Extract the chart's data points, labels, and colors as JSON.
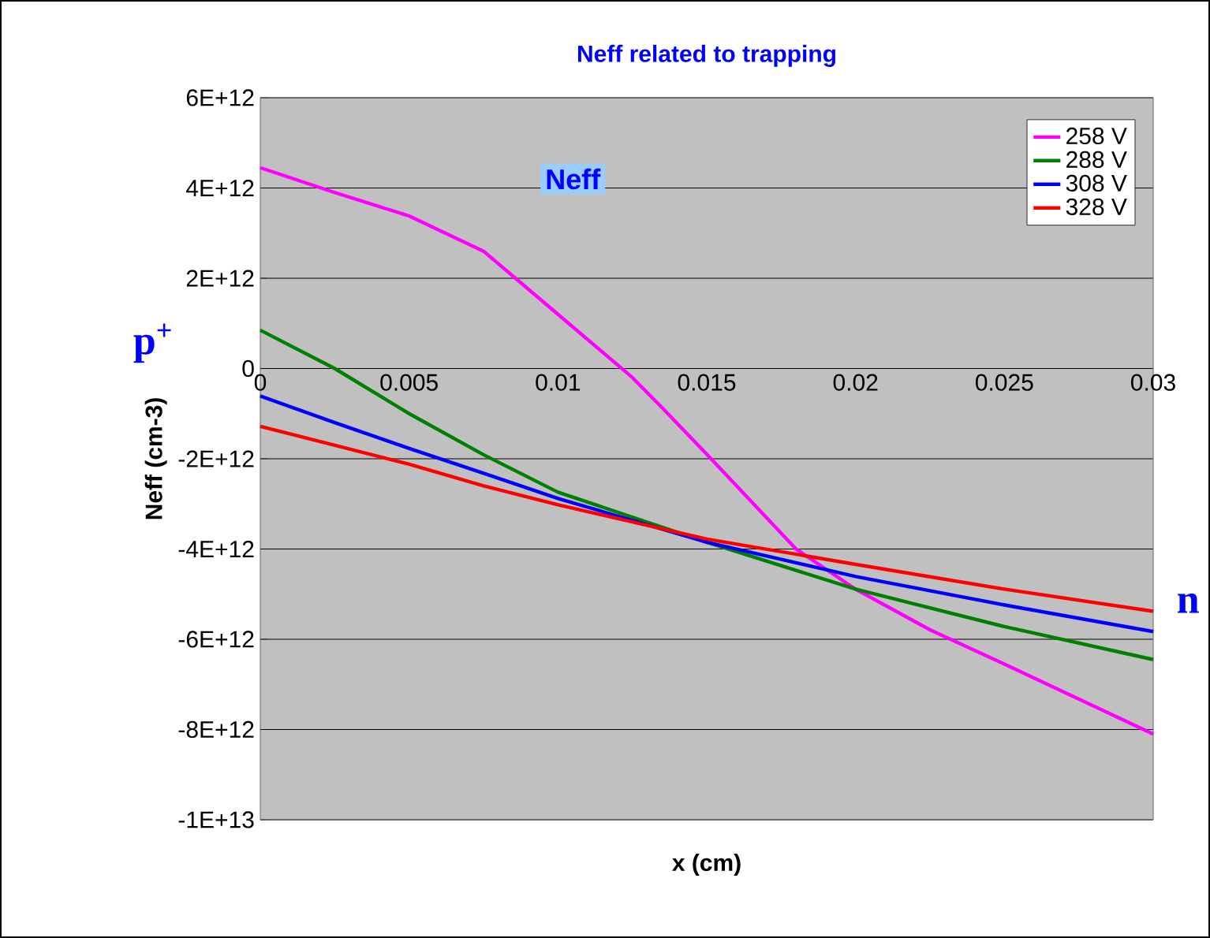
{
  "chart_data": {
    "type": "line",
    "title": "Neff related to trapping",
    "xlabel": "x (cm)",
    "ylabel": "Neff (cm-3)",
    "annotations": [
      "Neff",
      "p$^{+}$",
      "n"
    ],
    "xlim": [
      0,
      0.03
    ],
    "xticks": [
      0,
      0.005,
      0.01,
      0.015,
      0.02,
      0.025,
      0.03
    ],
    "ylim": [
      -10000000000000.0,
      6000000000000.0
    ],
    "yticks": [
      {
        "value": 6000000000000.0,
        "label": "6E+12"
      },
      {
        "value": 4000000000000.0,
        "label": "4E+12"
      },
      {
        "value": 2000000000000.0,
        "label": "2E+12"
      },
      0,
      {
        "value": -2000000000000.0,
        "label": "-2E+12"
      },
      {
        "value": -4000000000000.0,
        "label": "-4E+12"
      },
      {
        "value": -6000000000000.0,
        "label": "-6E+12"
      },
      {
        "value": -8000000000000.0,
        "label": "-8E+12"
      },
      {
        "value": -10000000000000.0,
        "label": "-1E+13"
      }
    ],
    "grid": "y",
    "legend": "top right",
    "marker": "none",
    "line_style": "solid",
    "x": [
      0,
      0.0025,
      0.005,
      0.0075,
      0.01,
      0.0125,
      0.0135,
      0.015,
      0.018,
      0.02,
      0.0225,
      0.025,
      0.03
    ],
    "series": [
      {
        "name": "258 V",
        "color": "#ff00ff",
        "values": [
          4450000000000.0,
          3900000000000.0,
          3380000000000.0,
          2600000000000.0,
          1200000000000.0,
          -200000000000.0,
          -870000000000.0,
          -1900000000000.0,
          -4000000000000.0,
          -4890000000000.0,
          -5790000000000.0,
          -6550000000000.0,
          -8100000000000.0
        ]
      },
      {
        "name": "288 V",
        "color": "#008000",
        "values": [
          850000000000.0,
          0.0,
          -1000000000000.0,
          -1910000000000.0,
          -2740000000000.0,
          null,
          null,
          -3850000000000.0,
          null,
          -4890000000000.0,
          null,
          -5720000000000.0,
          -6450000000000.0
        ]
      },
      {
        "name": "308 V",
        "color": "#0000ff",
        "values": [
          -610000000000.0,
          -1200000000000.0,
          -1770000000000.0,
          -2320000000000.0,
          -2880000000000.0,
          null,
          null,
          -3850000000000.0,
          null,
          -4610000000000.0,
          null,
          -5240000000000.0,
          -5830000000000.0
        ]
      },
      {
        "name": "328 V",
        "color": "#ff0000",
        "values": [
          -1280000000000.0,
          -1700000000000.0,
          -2120000000000.0,
          -2600000000000.0,
          -3020000000000.0,
          null,
          null,
          -3780000000000.0,
          null,
          -4340000000000.0,
          null,
          -4890000000000.0,
          -5380000000000.0
        ]
      }
    ]
  }
}
